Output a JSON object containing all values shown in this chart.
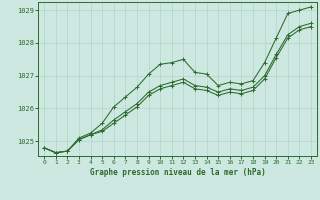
{
  "title": "Graphe pression niveau de la mer (hPa)",
  "bg_color": "#cce8e0",
  "grid_color": "#b0d4c8",
  "line_color": "#2d6a2d",
  "xlim": [
    -0.5,
    23.5
  ],
  "ylim": [
    1024.55,
    1029.25
  ],
  "yticks": [
    1025,
    1026,
    1027,
    1028,
    1029
  ],
  "xticks": [
    0,
    1,
    2,
    3,
    4,
    5,
    6,
    7,
    8,
    9,
    10,
    11,
    12,
    13,
    14,
    15,
    16,
    17,
    18,
    19,
    20,
    21,
    22,
    23
  ],
  "series": [
    {
      "x": [
        0,
        1,
        2,
        3,
        4,
        5,
        6,
        7,
        8,
        9,
        10,
        11,
        12,
        13,
        14,
        15,
        16,
        17,
        18,
        19,
        20,
        21,
        22,
        23
      ],
      "y": [
        1024.8,
        1024.65,
        1024.7,
        1025.1,
        1025.25,
        1025.55,
        1026.05,
        1026.35,
        1026.65,
        1027.05,
        1027.35,
        1027.4,
        1027.5,
        1027.1,
        1027.05,
        1026.7,
        1026.8,
        1026.75,
        1026.85,
        1027.4,
        1028.15,
        1028.9,
        1029.0,
        1029.1
      ]
    },
    {
      "x": [
        0,
        1,
        2,
        3,
        4,
        5,
        6,
        7,
        8,
        9,
        10,
        11,
        12,
        13,
        14,
        15,
        16,
        17,
        18,
        19,
        20,
        21,
        22,
        23
      ],
      "y": [
        1024.8,
        1024.65,
        1024.7,
        1025.05,
        1025.2,
        1025.35,
        1025.65,
        1025.9,
        1026.15,
        1026.5,
        1026.7,
        1026.8,
        1026.9,
        1026.7,
        1026.65,
        1026.5,
        1026.6,
        1026.55,
        1026.65,
        1027.0,
        1027.65,
        1028.25,
        1028.5,
        1028.6
      ]
    },
    {
      "x": [
        0,
        1,
        2,
        3,
        4,
        5,
        6,
        7,
        8,
        9,
        10,
        11,
        12,
        13,
        14,
        15,
        16,
        17,
        18,
        19,
        20,
        21,
        22,
        23
      ],
      "y": [
        1024.8,
        1024.65,
        1024.7,
        1025.05,
        1025.2,
        1025.3,
        1025.55,
        1025.8,
        1026.05,
        1026.4,
        1026.6,
        1026.7,
        1026.8,
        1026.6,
        1026.55,
        1026.4,
        1026.5,
        1026.45,
        1026.55,
        1026.9,
        1027.55,
        1028.15,
        1028.4,
        1028.5
      ]
    }
  ]
}
